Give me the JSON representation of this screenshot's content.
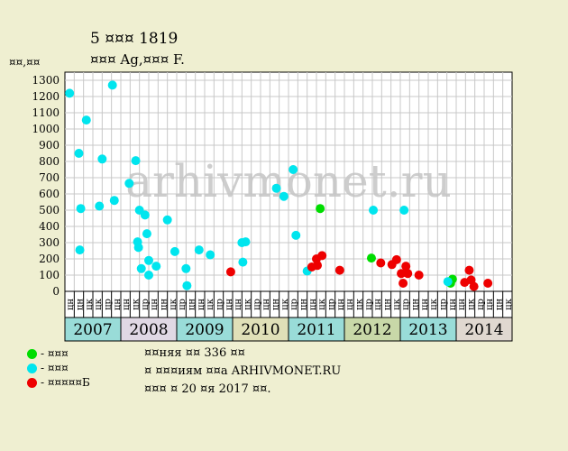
{
  "title": "5 ¤¤¤ 1819",
  "subtitle": "¤¤¤ Ag,¤¤¤ F.",
  "ylabel": "¤¤,¤¤",
  "legend": [
    {
      "color": "#00dd00",
      "label": "- ¤¤¤"
    },
    {
      "color": "#00e5ee",
      "label": "- ¤¤¤"
    },
    {
      "color": "#ee0000",
      "label": "- ¤¤¤¤¤Б"
    }
  ],
  "info": [
    "¤¤няя ¤¤ 336 ¤¤",
    "¤ ¤¤¤иям ¤¤а ARHIVMONET.RU",
    "¤¤¤ ¤ 20 ¤я 2017 ¤¤."
  ],
  "watermark": "arhivmonet.ru",
  "chart_data": {
    "type": "scatter",
    "ylim": [
      0,
      1350
    ],
    "yticks": [
      0,
      100,
      200,
      300,
      400,
      500,
      600,
      700,
      800,
      900,
      1000,
      1100,
      1200,
      1300
    ],
    "x_slot_labels": [
      "цн",
      "цн",
      "цк",
      "цк",
      "цр",
      "цн",
      "цн",
      "цк",
      "цр",
      "цн",
      "цн",
      "цк",
      "цр",
      "цн",
      "цн",
      "цк",
      "цр",
      "цн",
      "цн",
      "цк",
      "цр",
      "цн",
      "цн",
      "цк",
      "цр",
      "цн",
      "цн",
      "цк",
      "цр",
      "цн",
      "цн",
      "цк",
      "цр",
      "цн",
      "цн",
      "цк",
      "цр",
      "цн",
      "цн",
      "цк",
      "цр",
      "цн",
      "цн",
      "цк",
      "цр",
      "цн",
      "цн",
      "цк"
    ],
    "years": [
      {
        "label": "2007",
        "color": "#99dcd8"
      },
      {
        "label": "2008",
        "color": "#e0d8e4"
      },
      {
        "label": "2009",
        "color": "#99dcd8"
      },
      {
        "label": "2010",
        "color": "#e0e0b8"
      },
      {
        "label": "2011",
        "color": "#99dcd8"
      },
      {
        "label": "2012",
        "color": "#c8d8a8"
      },
      {
        "label": "2013",
        "color": "#99dcd8"
      },
      {
        "label": "2014",
        "color": "#e0d8d0"
      }
    ],
    "grid": true,
    "series": [
      {
        "color": "#00dd00",
        "points": [
          [
            27.4,
            510
          ],
          [
            32.9,
            205
          ],
          [
            41.4,
            50
          ],
          [
            41.6,
            75
          ]
        ]
      },
      {
        "color": "#00e5ee",
        "points": [
          [
            0.5,
            1220
          ],
          [
            1.5,
            850
          ],
          [
            1.6,
            255
          ],
          [
            1.7,
            510
          ],
          [
            2.3,
            1055
          ],
          [
            3.7,
            525
          ],
          [
            4.0,
            815
          ],
          [
            5.1,
            1270
          ],
          [
            5.3,
            560
          ],
          [
            6.9,
            665
          ],
          [
            7.6,
            805
          ],
          [
            7.8,
            305
          ],
          [
            7.9,
            270
          ],
          [
            8.0,
            500
          ],
          [
            8.2,
            140
          ],
          [
            8.6,
            470
          ],
          [
            8.8,
            355
          ],
          [
            9.0,
            190
          ],
          [
            9.0,
            100
          ],
          [
            9.8,
            155
          ],
          [
            11.0,
            440
          ],
          [
            11.8,
            245
          ],
          [
            13.0,
            140
          ],
          [
            13.1,
            35
          ],
          [
            14.4,
            255
          ],
          [
            15.6,
            225
          ],
          [
            19.0,
            300
          ],
          [
            19.1,
            180
          ],
          [
            19.4,
            305
          ],
          [
            22.7,
            635
          ],
          [
            23.5,
            585
          ],
          [
            24.5,
            750
          ],
          [
            24.8,
            345
          ],
          [
            26.0,
            125
          ],
          [
            33.1,
            500
          ],
          [
            36.4,
            500
          ],
          [
            41.1,
            60
          ]
        ]
      },
      {
        "color": "#ee0000",
        "points": [
          [
            17.8,
            120
          ],
          [
            26.5,
            150
          ],
          [
            27.0,
            200
          ],
          [
            27.1,
            160
          ],
          [
            27.6,
            220
          ],
          [
            29.5,
            130
          ],
          [
            33.9,
            175
          ],
          [
            35.1,
            165
          ],
          [
            35.6,
            195
          ],
          [
            36.1,
            110
          ],
          [
            36.3,
            50
          ],
          [
            36.6,
            155
          ],
          [
            36.8,
            110
          ],
          [
            38.0,
            100
          ],
          [
            42.9,
            55
          ],
          [
            43.4,
            130
          ],
          [
            43.6,
            70
          ],
          [
            43.9,
            30
          ],
          [
            45.4,
            50
          ]
        ]
      }
    ]
  }
}
